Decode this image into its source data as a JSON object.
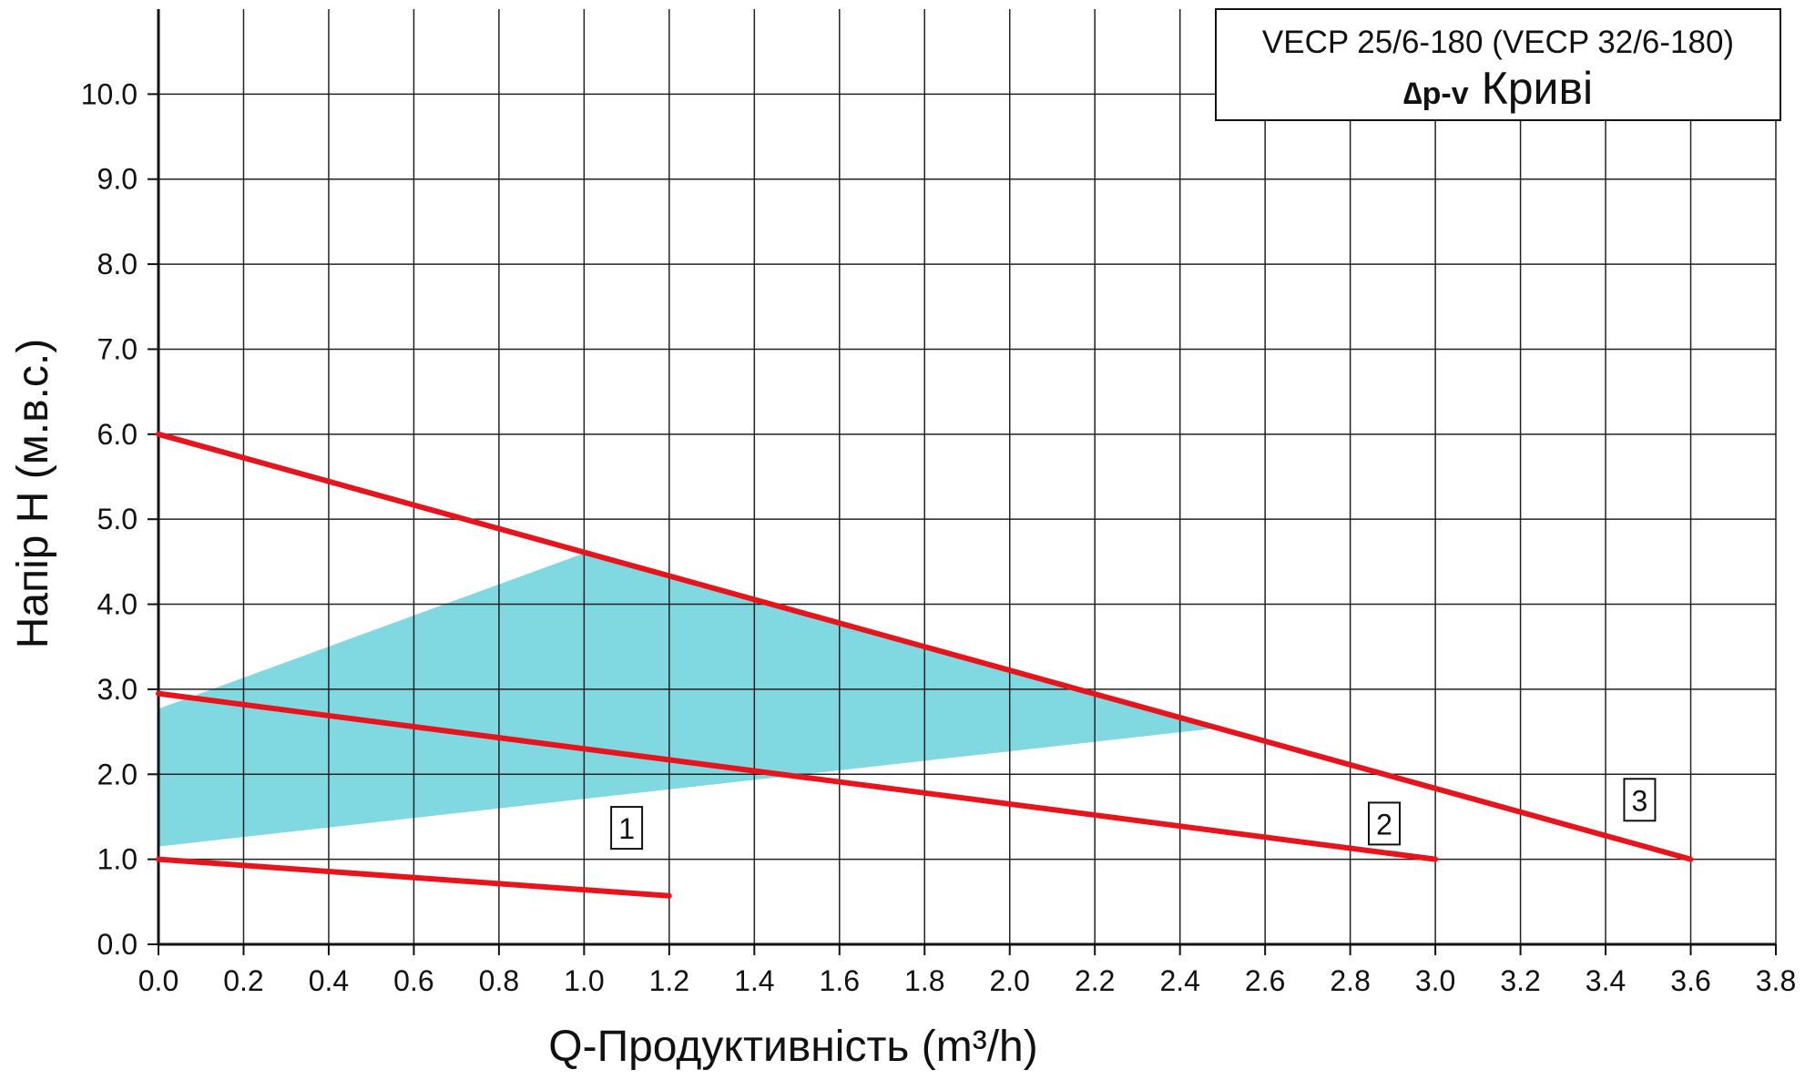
{
  "chart_data": {
    "type": "line",
    "title_line1": "VECP 25/6-180 (VECP 32/6-180)",
    "title_line2_symbol": "∆p-v",
    "title_line2_text": "Криві",
    "xlabel": "Q-Продуктивність (m³/h)",
    "ylabel": "Напір H (м.в.с.)",
    "xlim": [
      0.0,
      3.8
    ],
    "ylim": [
      0.0,
      11.0
    ],
    "x_ticks": [
      "0.0",
      "0.2",
      "0.4",
      "0.6",
      "0.8",
      "1.0",
      "1.2",
      "1.4",
      "1.6",
      "1.8",
      "2.0",
      "2.2",
      "2.4",
      "2.6",
      "2.8",
      "3.0",
      "3.2",
      "3.4",
      "3.6",
      "3.8"
    ],
    "y_ticks": [
      "0.0",
      "1.0",
      "2.0",
      "3.0",
      "4.0",
      "5.0",
      "6.0",
      "7.0",
      "8.0",
      "9.0",
      "10.0"
    ],
    "grid": true,
    "series": [
      {
        "label": "1",
        "x": [
          0.0,
          1.2
        ],
        "y": [
          1.0,
          0.57
        ],
        "label_pos": [
          1.1,
          1.37
        ]
      },
      {
        "label": "2",
        "x": [
          0.0,
          3.0
        ],
        "y": [
          2.95,
          1.0
        ],
        "label_pos": [
          2.88,
          1.42
        ]
      },
      {
        "label": "3",
        "x": [
          0.0,
          3.6
        ],
        "y": [
          6.0,
          1.0
        ],
        "label_pos": [
          3.48,
          1.7
        ]
      }
    ],
    "shaded_region": {
      "color": "#80d8e0",
      "points": [
        [
          0.0,
          2.77
        ],
        [
          1.0,
          4.6
        ],
        [
          2.5,
          2.55
        ],
        [
          0.0,
          1.15
        ]
      ]
    },
    "line_color": "#e8141b"
  }
}
